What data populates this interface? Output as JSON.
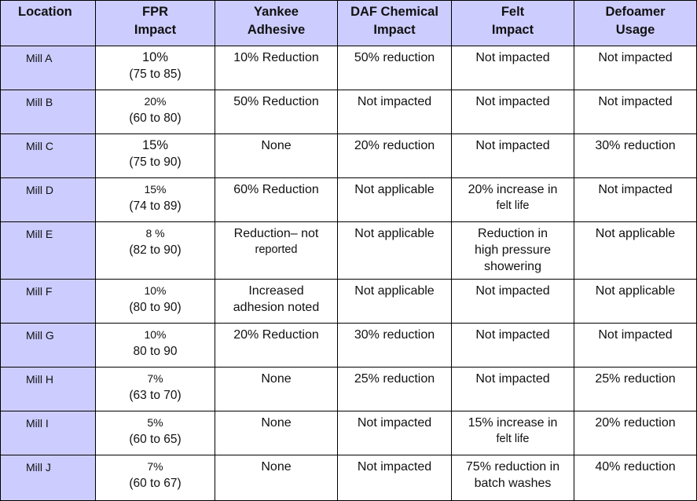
{
  "table": {
    "headers": {
      "location": "Location",
      "fpr": [
        "FPR",
        "Impact"
      ],
      "yankee": [
        "Yankee",
        "Adhesive"
      ],
      "daf": [
        "DAF Chemical",
        "Impact"
      ],
      "felt": [
        "Felt",
        "Impact"
      ],
      "defoamer": [
        "Defoamer",
        "Usage"
      ]
    },
    "rows": [
      {
        "location": "Mill A",
        "fpr_pct": "10%",
        "fpr_range": "(75 to 85)",
        "yankee": [
          "10% Reduction"
        ],
        "daf": "50% reduction",
        "felt": [
          "Not impacted"
        ],
        "defoamer": "Not impacted"
      },
      {
        "location": "Mill B",
        "fpr_pct": "20%",
        "fpr_range": "(60 to 80)",
        "yankee": [
          "50% Reduction"
        ],
        "daf": "Not impacted",
        "felt": [
          "Not impacted"
        ],
        "defoamer": "Not impacted"
      },
      {
        "location": "Mill C",
        "fpr_pct": "15%",
        "fpr_range": "(75 to 90)",
        "yankee": [
          "None"
        ],
        "daf": "20% reduction",
        "felt": [
          "Not impacted"
        ],
        "defoamer": "30% reduction"
      },
      {
        "location": "Mill D",
        "fpr_pct": "15%",
        "fpr_range": "(74 to 89)",
        "yankee": [
          "60% Reduction"
        ],
        "daf": "Not applicable",
        "felt": [
          "20% increase in",
          "felt life"
        ],
        "defoamer": "Not impacted"
      },
      {
        "location": "Mill E",
        "fpr_pct": "8 %",
        "fpr_range": "(82 to 90)",
        "yankee": [
          "Reduction– not",
          "reported"
        ],
        "daf": "Not applicable",
        "felt": [
          "Reduction in",
          "high pressure",
          "showering"
        ],
        "defoamer": "Not applicable"
      },
      {
        "location": "Mill F",
        "fpr_pct": "10%",
        "fpr_range": "(80 to 90)",
        "yankee": [
          "Increased",
          "adhesion noted"
        ],
        "daf": "Not applicable",
        "felt": [
          "Not impacted"
        ],
        "defoamer": "Not applicable"
      },
      {
        "location": "Mill G",
        "fpr_pct": "10%",
        "fpr_range": "80 to 90",
        "yankee": [
          "20% Reduction"
        ],
        "daf": "30% reduction",
        "felt": [
          "Not impacted"
        ],
        "defoamer": "Not impacted"
      },
      {
        "location": "Mill H",
        "fpr_pct": "7%",
        "fpr_range": "(63 to 70)",
        "yankee": [
          "None"
        ],
        "daf": "25% reduction",
        "felt": [
          "Not impacted"
        ],
        "defoamer": "25% reduction"
      },
      {
        "location": "Mill I",
        "fpr_pct": "5%",
        "fpr_range": "(60 to 65)",
        "yankee": [
          "None"
        ],
        "daf": "Not impacted",
        "felt": [
          "15% increase in",
          "felt life"
        ],
        "defoamer": "20% reduction"
      },
      {
        "location": "Mill J",
        "fpr_pct": "7%",
        "fpr_range": "(60 to 67)",
        "yankee": [
          "None"
        ],
        "daf": "Not impacted",
        "felt": [
          "75% reduction in",
          "batch washes"
        ],
        "defoamer": "40% reduction"
      }
    ]
  }
}
